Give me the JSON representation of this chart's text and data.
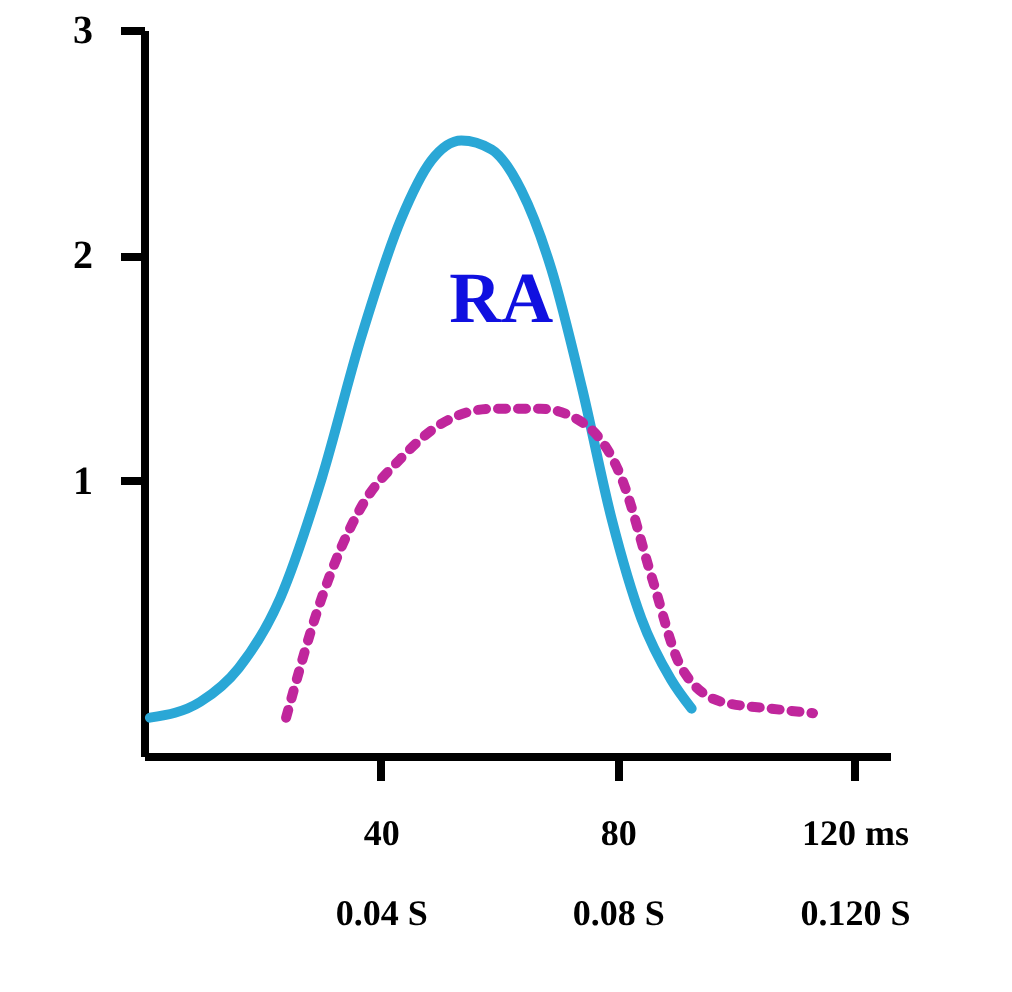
{
  "chart_data": {
    "type": "line",
    "xlim": [
      0,
      126
    ],
    "ylim": [
      -0.22,
      3.0
    ],
    "xticks": [
      40,
      80,
      {
        "value": 120,
        "label": "120 ms"
      }
    ],
    "x2lim": [
      0,
      0.126
    ],
    "x2ticks": [
      {
        "value": 0.04,
        "label": "0.04 S"
      },
      {
        "value": 0.08,
        "label": "0.08 S"
      },
      {
        "value": 0.12,
        "label": "0.120 S"
      }
    ],
    "yticks": [
      1,
      2,
      3
    ],
    "series": [
      {
        "name": "RA",
        "color": "#2aa7d6",
        "line_style": "solid",
        "x": [
          1,
          9.5,
          16,
          23,
          30,
          36.6,
          43.4,
          48.5,
          53.6,
          58.7,
          63.7,
          68.8,
          74,
          79,
          84,
          89,
          92.5
        ],
        "values": [
          -0.05,
          0.02,
          0.17,
          0.48,
          1.01,
          1.63,
          2.16,
          2.42,
          2.51,
          2.47,
          2.29,
          1.94,
          1.41,
          0.83,
          0.39,
          0.12,
          -0.01
        ]
      },
      {
        "color": "#c0269c",
        "line_style": "dotted",
        "x": [
          24,
          30,
          36.6,
          43.4,
          50,
          58.7,
          67,
          74,
          80.7,
          85.8,
          90.8,
          97.6,
          106,
          113
        ],
        "values": [
          -0.05,
          0.48,
          0.88,
          1.1,
          1.25,
          1.32,
          1.32,
          1.26,
          1.01,
          0.57,
          0.17,
          0.02,
          -0.01,
          -0.03
        ]
      }
    ]
  }
}
